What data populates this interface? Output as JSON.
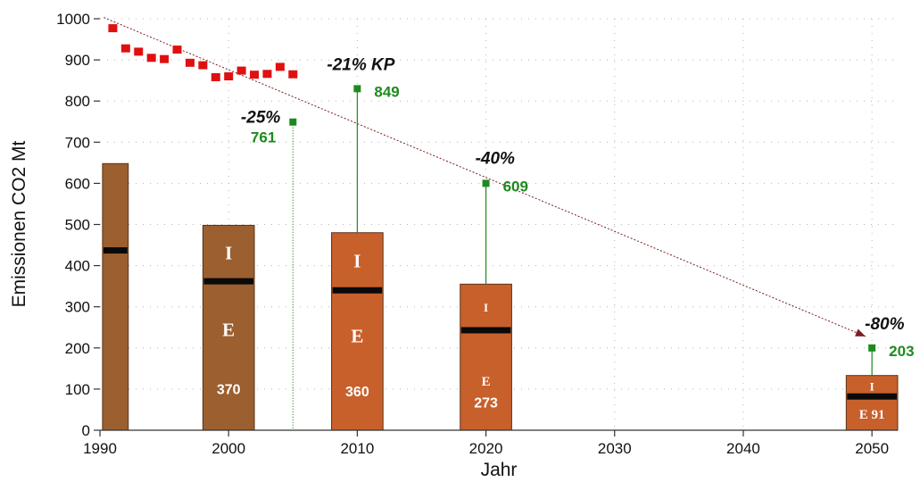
{
  "chart_data": {
    "type": "bar",
    "title": "",
    "xlabel": "Jahr",
    "ylabel": "Emissionen CO2 Mt",
    "xlim": [
      1990,
      2052
    ],
    "ylim": [
      0,
      1000
    ],
    "x_ticks": [
      "1990",
      "2000",
      "2010",
      "2020",
      "2030",
      "2040",
      "2050"
    ],
    "y_ticks": [
      "0",
      "100",
      "200",
      "300",
      "400",
      "500",
      "600",
      "700",
      "800",
      "900",
      "1000"
    ],
    "grid": true,
    "colors": {
      "bar_historic": "#9b5f30",
      "bar_future": "#c8602c",
      "annual_points": "#e01010",
      "target": "#1e8a1e",
      "trend_line": "#7a1e1e"
    },
    "bars": [
      {
        "x_start": 1990.2,
        "x_end": 1992.2,
        "total": 648,
        "split": 437,
        "i_label": "",
        "e_label": "",
        "value_label": "",
        "color": "historic"
      },
      {
        "x_start": 1998,
        "x_end": 2002,
        "total": 498,
        "split": 362,
        "i_label": "I",
        "e_label": "E",
        "value_label": "370",
        "color": "historic"
      },
      {
        "x_start": 2008,
        "x_end": 2012,
        "total": 480,
        "split": 340,
        "i_label": "I",
        "e_label": "E",
        "value_label": "360",
        "color": "future"
      },
      {
        "x_start": 2018,
        "x_end": 2022,
        "total": 355,
        "split": 243,
        "i_label": "I",
        "e_label": "E",
        "value_label": "273",
        "color": "future"
      },
      {
        "x_start": 2048,
        "x_end": 2052,
        "total": 133,
        "split": 82,
        "i_label": "I",
        "e_label": "E 91",
        "value_label": "",
        "color": "future"
      }
    ],
    "annual_points": [
      {
        "x": 1991,
        "y": 977
      },
      {
        "x": 1992,
        "y": 928
      },
      {
        "x": 1993,
        "y": 920
      },
      {
        "x": 1994,
        "y": 905
      },
      {
        "x": 1995,
        "y": 902
      },
      {
        "x": 1996,
        "y": 925
      },
      {
        "x": 1997,
        "y": 893
      },
      {
        "x": 1998,
        "y": 887
      },
      {
        "x": 1999,
        "y": 858
      },
      {
        "x": 2000,
        "y": 860
      },
      {
        "x": 2001,
        "y": 874
      },
      {
        "x": 2002,
        "y": 864
      },
      {
        "x": 2003,
        "y": 866
      },
      {
        "x": 2004,
        "y": 883
      },
      {
        "x": 2005,
        "y": 865
      }
    ],
    "targets": [
      {
        "x": 2005,
        "y": 749,
        "percent": "-25%",
        "value": "761",
        "line": "dotted"
      },
      {
        "x": 2010,
        "y": 830,
        "percent": "-21% KP",
        "value": "849",
        "line": "solid"
      },
      {
        "x": 2020,
        "y": 600,
        "percent": "-40%",
        "value": "609",
        "line": "solid"
      },
      {
        "x": 2050,
        "y": 200,
        "percent": "-80%",
        "value": "203",
        "line": "solid"
      }
    ],
    "trend_line": {
      "x": [
        1990.3,
        2049.5
      ],
      "y": [
        1003,
        228
      ]
    }
  }
}
